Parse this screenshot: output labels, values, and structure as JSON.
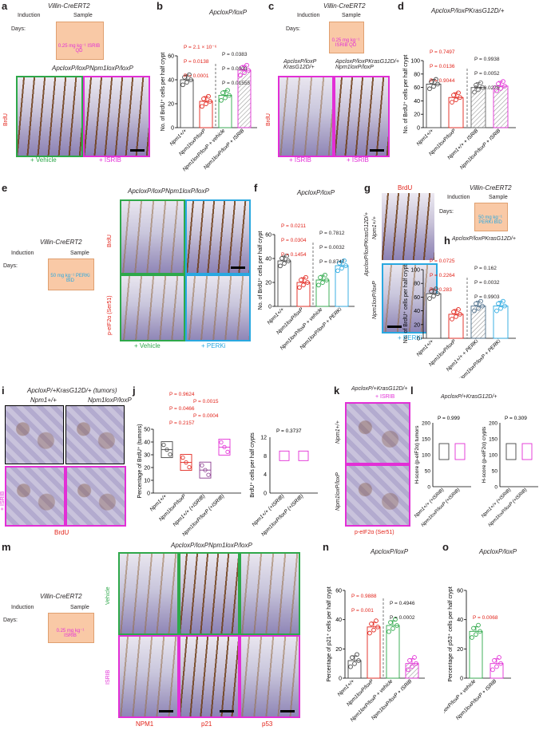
{
  "figure": {
    "panel_labels": [
      "a",
      "b",
      "c",
      "d",
      "e",
      "f",
      "g",
      "h",
      "i",
      "j",
      "k",
      "l",
      "m",
      "n",
      "o"
    ],
    "colors": {
      "red": "#e2231a",
      "magenta": "#e22fd6",
      "green": "#2ea84a",
      "blue": "#29a8e0"
    }
  },
  "panel_a": {
    "title": "Villin-CreERT2",
    "induction": "Induction",
    "sample": "Sample",
    "days": "Days:",
    "day_ticks": [
      "0",
      "1",
      "2",
      "3",
      "4"
    ],
    "dose": "0.25 mg kg⁻¹ ISRIB QD",
    "genotype": "ApcloxP/loxPNpm1loxP/loxP",
    "stain": "BrdU",
    "conditions": [
      "+ Vehicle",
      "+ ISRIB"
    ]
  },
  "panel_b": {
    "title": "ApcloxP/loxP",
    "ylabel": "No. of BrdU⁺ cells per half crypt",
    "pvalues": [
      "P = 2.1 × 10⁻⁶",
      "P = 0.0383",
      "P = 0.0138",
      "P = 0.0003",
      "P = 0.0001",
      "P = 0.01555"
    ],
    "categories": [
      "Npm1+/+",
      "Npm1loxP/loxP",
      "Npm1loxP/loxP + vehicle",
      "Npm1loxP/loxP + ISRIB"
    ],
    "yticks": [
      "0",
      "20",
      "40",
      "60"
    ]
  },
  "panel_c": {
    "title": "Villin-CreERT2",
    "induction": "Induction",
    "sample": "Sample",
    "days": "Days:",
    "day_ticks": [
      "0",
      "1",
      "2",
      "3"
    ],
    "dose": "0.25 mg kg⁻¹ ISRIB QD",
    "genotype_left": "ApcloxP/loxP KrasG12D/+",
    "genotype_right": "ApcloxP/loxPKrasG12D/+ Npm1loxP/loxP",
    "stain": "BrdU",
    "conditions": [
      "+ ISRIB",
      "+ ISRIB"
    ]
  },
  "panel_d": {
    "title": "ApcloxP/loxPKrasG12D/+",
    "ylabel": "No. of BrdU⁺ cells per half crypt",
    "pvalues": [
      "P = 0.7497",
      "P = 0.9938",
      "P = 0.0136",
      "P = 0.0052",
      "P = 0.9044",
      "P = 0.0276"
    ],
    "categories": [
      "Npm1+/+",
      "Npm1loxP/loxP",
      "Npm1+/+ + ISRIB",
      "Npm1loxP/loxP + ISRIB"
    ],
    "yticks": [
      "0",
      "20",
      "40",
      "60",
      "80",
      "100"
    ]
  },
  "panel_e": {
    "title": "Villin-CreERT2",
    "induction": "Induction",
    "sample": "Sample",
    "days": "Days:",
    "day_ticks": [
      "0",
      "1",
      "2",
      "3",
      "4"
    ],
    "dose": "50 mg kg⁻¹ PERKi BID",
    "genotype": "ApcloxP/loxPNpm1loxP/loxP",
    "stains": [
      "BrdU",
      "p-eIF2α (Ser51)"
    ],
    "conditions": [
      "+ Vehicle",
      "+ PERKi"
    ]
  },
  "panel_f": {
    "title": "ApcloxP/loxP",
    "ylabel": "No. of BrdU⁺ cells per half crypt",
    "pvalues": [
      "P = 0.0211",
      "P = 0.7812",
      "P = 0.0304",
      "P = 0.0032",
      "P = 0.1454",
      "P = 0.8747"
    ],
    "categories": [
      "Npm1+/+",
      "Npm1loxP/loxP",
      "Npm1loxP/loxP + vehicle",
      "Npm1loxP/loxP + PERKi"
    ],
    "yticks": [
      "0",
      "20",
      "40",
      "60"
    ]
  },
  "panel_g": {
    "stain": "BrdU",
    "row_labels": [
      "Npm1+/+",
      "Npm1loxP/loxP"
    ],
    "side_label": "ApcloxP/loxPKrasG12D/+",
    "condition": "+ PERKi",
    "scheme_title": "Villin-CreERT2",
    "induction": "Induction",
    "sample": "Sample",
    "days": "Days:",
    "day_ticks": [
      "0",
      "1",
      "2",
      "3"
    ],
    "dose": "50 mg kg⁻¹ PERKi BID"
  },
  "panel_h": {
    "title": "ApcloxP/loxPKrasG12D/+",
    "ylabel": "No. of BrdU⁺ cells per half crypt",
    "pvalues": [
      "P = 0.0725",
      "P = 0.162",
      "P = 0.2264",
      "P = 0.0032",
      "P = 0.283",
      "P = 0.9903"
    ],
    "categories": [
      "Npm1+/+",
      "Npm1loxP/loxP",
      "Npm1+/+ + PERKi",
      "Npm1loxP/loxP + PERKi"
    ],
    "yticks": [
      "0",
      "20",
      "40",
      "60",
      "80",
      "100"
    ]
  },
  "panel_i": {
    "title": "ApcloxP/+KrasG12D/+ (tumors)",
    "col_labels": [
      "Npm1+/+",
      "Npm1loxP/loxP"
    ],
    "row_label": "+ ISRIB",
    "stain": "BrdU"
  },
  "panel_j": {
    "ylabel_left": "Percentage of BrdU⁺ (tumors)",
    "ylabel_right": "BrdU⁺ cells per half crypts",
    "pvalues": [
      "P = 0.9624",
      "P = 0.0015",
      "P = 0.0466",
      "P = 0.0004",
      "P = 0.2157",
      "P = 0.3737"
    ],
    "categories_left": [
      "Npm1+/+",
      "Npm1loxP/loxP",
      "Npm1+/+ (+ISRIB)",
      "Npm1loxP/loxP (+ISRIB)"
    ],
    "categories_right": [
      "Npm1+/+ (+ISRIB)",
      "Npm1loxP/loxP (+ISRIB)"
    ],
    "yticks_left": [
      "0",
      "10",
      "20",
      "30",
      "40",
      "50"
    ],
    "yticks_right": [
      "0",
      "4",
      "8",
      "12"
    ]
  },
  "panel_k": {
    "title": "ApcloxP/+KrasG12D/+",
    "subtitle": "+ ISRIB",
    "row_labels": [
      "Npm1+/+",
      "Npm1loxP/loxP"
    ],
    "stain": "p-eIF2α (Ser51)"
  },
  "panel_l": {
    "title": "ApcloxP/+KrasG12D/+",
    "ylabel_left": "H-score (p-eIF2α) tumors",
    "ylabel_right": "H-score (p-eIF2α) crypts",
    "pvalues": [
      "P = 0.999",
      "P = 0.309"
    ],
    "categories": [
      "Npm1+/+ (+ISRIB)",
      "Npm1loxP/loxP (+ISRIB)"
    ],
    "yticks": [
      "0",
      "50",
      "100",
      "150",
      "200"
    ]
  },
  "panel_m": {
    "scheme_title": "Villin-CreERT2",
    "induction": "Induction",
    "sample": "Sample",
    "days": "Days:",
    "day_ticks": [
      "0",
      "1",
      "2",
      "3",
      "4"
    ],
    "dose": "0.25 mg kg⁻¹ ISRIB",
    "genotype": "ApcloxP/loxPNpm1loxP/loxP",
    "row_labels": [
      "Vehicle",
      "ISRIB"
    ],
    "stains": [
      "NPM1",
      "p21",
      "p53"
    ]
  },
  "panel_n": {
    "title": "ApcloxP/loxP",
    "ylabel": "Percentage of p21⁺ cells per half crypt",
    "pvalues": [
      "P = 0.9888",
      "P = 0.4946",
      "P = 0.001",
      "P = 0.0002"
    ],
    "categories": [
      "Npm1+/+",
      "Npm1loxP/loxP",
      "Npm1loxP/loxP + vehicle",
      "Npm1loxP/loxP + ISRIB"
    ],
    "yticks": [
      "0",
      "20",
      "40",
      "60"
    ]
  },
  "panel_o": {
    "title": "ApcloxP/loxP",
    "ylabel": "Percentage of p53⁺ cells per half crypt",
    "pvalues": [
      "P = 0.0068"
    ],
    "categories": [
      "Npm1loxP/loxP + vehicle",
      "Npm1loxP/loxP + ISRIB"
    ],
    "yticks": [
      "0",
      "20",
      "40",
      "60"
    ]
  },
  "chart_data": [
    {
      "panel": "b",
      "type": "bar",
      "ylim": [
        0,
        60
      ],
      "categories": [
        "Npm1+/+",
        "Npm1loxP/loxP",
        "Npm1loxP/loxP + vehicle",
        "Npm1loxP/loxP + ISRIB"
      ],
      "values": [
        40,
        22,
        27,
        48
      ],
      "title": "ApcloxP/loxP",
      "ylabel": "No. of BrdU⁺ cells per half crypt"
    },
    {
      "panel": "d",
      "type": "bar",
      "ylim": [
        0,
        100
      ],
      "categories": [
        "Npm1+/+",
        "Npm1loxP/loxP",
        "Npm1+/+ + ISRIB",
        "Npm1loxP/loxP + ISRIB"
      ],
      "values": [
        65,
        45,
        60,
        62
      ],
      "title": "ApcloxP/loxPKrasG12D/+",
      "ylabel": "No. of BrdU⁺ cells per half crypt"
    },
    {
      "panel": "f",
      "type": "bar",
      "ylim": [
        0,
        60
      ],
      "categories": [
        "Npm1+/+",
        "Npm1loxP/loxP",
        "Npm1loxP/loxP + vehicle",
        "Npm1loxP/loxP + PERKi"
      ],
      "values": [
        38,
        20,
        22,
        34
      ],
      "title": "ApcloxP/loxP",
      "ylabel": "No. of BrdU⁺ cells per half crypt"
    },
    {
      "panel": "h",
      "type": "bar",
      "ylim": [
        0,
        100
      ],
      "categories": [
        "Npm1+/+",
        "Npm1loxP/loxP",
        "Npm1+/+ + PERKi",
        "Npm1loxP/loxP + PERKi"
      ],
      "values": [
        65,
        35,
        47,
        47
      ],
      "title": "ApcloxP/loxPKrasG12D/+",
      "ylabel": "No. of BrdU⁺ cells per half crypt"
    },
    {
      "panel": "n",
      "type": "bar",
      "ylim": [
        0,
        60
      ],
      "categories": [
        "Npm1+/+",
        "Npm1loxP/loxP",
        "Npm1loxP/loxP + vehicle",
        "Npm1loxP/loxP + ISRIB"
      ],
      "values": [
        12,
        35,
        36,
        10
      ],
      "title": "ApcloxP/loxP",
      "ylabel": "Percentage of p21⁺ cells per half crypt"
    },
    {
      "panel": "o",
      "type": "bar",
      "ylim": [
        0,
        60
      ],
      "categories": [
        "Npm1loxP/loxP + vehicle",
        "Npm1loxP/loxP + ISRIB"
      ],
      "values": [
        32,
        10
      ],
      "title": "ApcloxP/loxP",
      "ylabel": "Percentage of p53⁺ cells per half crypt"
    }
  ]
}
